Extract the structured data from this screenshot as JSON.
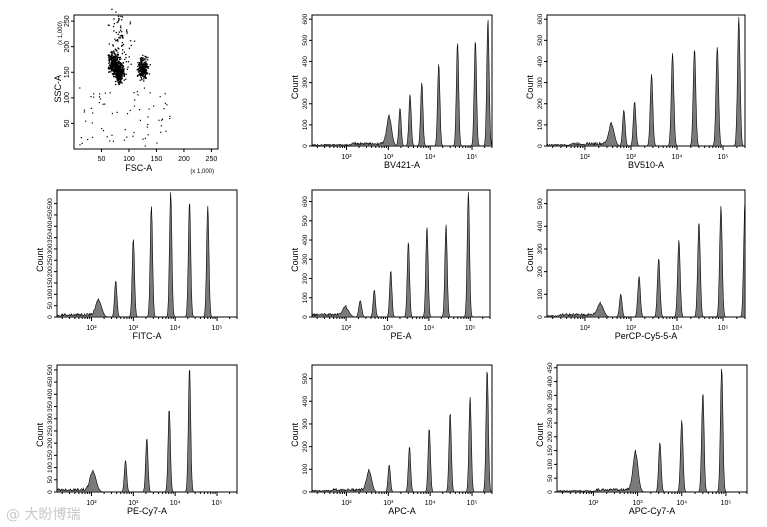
{
  "watermark": "@ 大盼博瑞",
  "chart_data": [
    {
      "type": "scatter",
      "xlabel": "FSC-A",
      "ylabel": "SSC-A",
      "x_multiplier": "(x 1,000)",
      "y_multiplier": "(x 1,000)",
      "xlim": [
        0,
        262
      ],
      "ylim": [
        0,
        262
      ],
      "xticks": [
        50,
        100,
        150,
        200,
        250
      ],
      "yticks": [
        50,
        100,
        150,
        200,
        250
      ],
      "clusters": [
        {
          "x": 72,
          "y": 170,
          "note": "dense"
        },
        {
          "x": 82,
          "y": 150,
          "note": "dense"
        },
        {
          "x": 125,
          "y": 158,
          "note": "dense"
        },
        {
          "x": 85,
          "y": 210,
          "note": "sparse"
        }
      ]
    },
    {
      "type": "area",
      "xlabel": "BV421-A",
      "ylabel": "Count",
      "scale": "log",
      "ylim": [
        0,
        620
      ],
      "yticks": [
        0,
        100,
        200,
        300,
        400,
        500,
        600
      ],
      "xticks": [
        "10²",
        "10³",
        "10⁴",
        "10⁵"
      ],
      "x": [
        1050,
        1900,
        3300,
        6300,
        16000,
        45000,
        120000,
        240000
      ],
      "y": [
        135,
        180,
        245,
        300,
        390,
        490,
        500,
        600
      ]
    },
    {
      "type": "area",
      "xlabel": "BV510-A",
      "ylabel": "Count",
      "scale": "log",
      "ylim": [
        0,
        620
      ],
      "yticks": [
        0,
        100,
        200,
        300,
        400,
        500,
        600
      ],
      "xticks": [
        "10²",
        "10³",
        "10⁴",
        "10⁵"
      ],
      "x": [
        380,
        700,
        1200,
        2800,
        8000,
        24000,
        75000,
        220000
      ],
      "y": [
        100,
        170,
        210,
        340,
        440,
        460,
        470,
        610
      ]
    },
    {
      "type": "area",
      "xlabel": "FITC-A",
      "ylabel": "Count",
      "scale": "log",
      "ylim": [
        0,
        560
      ],
      "yticks": [
        0,
        50,
        100,
        150,
        200,
        250,
        300,
        350,
        400,
        450,
        500
      ],
      "xticks": [
        "10²",
        "10³",
        "10⁴",
        "10⁵"
      ],
      "x": [
        150,
        380,
        1000,
        2700,
        7800,
        22000,
        60000
      ],
      "y": [
        70,
        160,
        345,
        490,
        550,
        510,
        490
      ]
    },
    {
      "type": "area",
      "xlabel": "PE-A",
      "ylabel": "Count",
      "scale": "log",
      "ylim": [
        0,
        660
      ],
      "yticks": [
        0,
        100,
        200,
        300,
        400,
        500,
        600
      ],
      "xticks": [
        "10²",
        "10³",
        "10⁴",
        "10⁵"
      ],
      "x": [
        100,
        220,
        480,
        1200,
        3200,
        9000,
        26000,
        90000
      ],
      "y": [
        45,
        85,
        140,
        240,
        390,
        470,
        480,
        650
      ]
    },
    {
      "type": "area",
      "xlabel": "PerCP-Cy5-5-A",
      "ylabel": "Count",
      "scale": "log",
      "ylim": [
        0,
        560
      ],
      "yticks": [
        0,
        100,
        200,
        300,
        400,
        500
      ],
      "xticks": [
        "10²",
        "10³",
        "10⁴",
        "10⁵"
      ],
      "x": [
        220,
        600,
        1500,
        4000,
        11000,
        30000,
        90000,
        300000
      ],
      "y": [
        55,
        100,
        180,
        260,
        340,
        420,
        490,
        520
      ]
    },
    {
      "type": "area",
      "xlabel": "PE-Cy7-A",
      "ylabel": "Count",
      "scale": "log",
      "ylim": [
        0,
        520
      ],
      "yticks": [
        0,
        50,
        100,
        150,
        200,
        250,
        300,
        350,
        400,
        450,
        500
      ],
      "xticks": [
        "10²",
        "10³",
        "10⁴",
        "10⁵"
      ],
      "x": [
        110,
        650,
        2100,
        7200,
        22000
      ],
      "y": [
        80,
        130,
        220,
        340,
        510
      ]
    },
    {
      "type": "area",
      "xlabel": "APC-A",
      "ylabel": "Count",
      "scale": "log",
      "ylim": [
        0,
        560
      ],
      "yticks": [
        0,
        100,
        200,
        300,
        400,
        500
      ],
      "xticks": [
        "10²",
        "10³",
        "10⁴",
        "10⁵"
      ],
      "x": [
        350,
        1050,
        3200,
        9500,
        30000,
        90000,
        230000
      ],
      "y": [
        90,
        120,
        200,
        280,
        350,
        420,
        540
      ]
    },
    {
      "type": "area",
      "xlabel": "APC-Cy7-A",
      "ylabel": "Count",
      "scale": "log",
      "ylim": [
        0,
        460
      ],
      "yticks": [
        0,
        50,
        100,
        150,
        200,
        250,
        300,
        350,
        400,
        450
      ],
      "xticks": [
        "10²",
        "10³",
        "10⁴",
        "10⁵"
      ],
      "x": [
        900,
        3200,
        10000,
        30000,
        80000
      ],
      "y": [
        140,
        180,
        260,
        360,
        450
      ]
    }
  ]
}
